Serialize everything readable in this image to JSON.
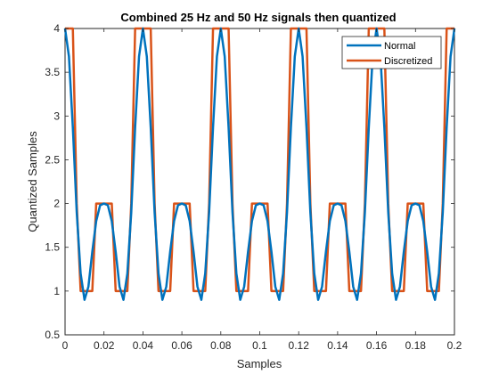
{
  "chart_data": {
    "type": "line",
    "title": "Combined 25 Hz and 50 Hz signals then quantized",
    "xlabel": "Samples",
    "ylabel": "Quantized Samples",
    "xlim": [
      0,
      0.2
    ],
    "ylim": [
      0.5,
      4
    ],
    "xticks": [
      "0",
      "0.02",
      "0.04",
      "0.06",
      "0.08",
      "0.1",
      "0.12",
      "0.14",
      "0.16",
      "0.18",
      "0.2"
    ],
    "yticks": [
      "0.5",
      "1",
      "1.5",
      "2",
      "2.5",
      "3",
      "3.5",
      "4"
    ],
    "legend": {
      "placement": "top-right"
    },
    "grid": false,
    "series": [
      {
        "name": "Normal",
        "color": "#0072BD",
        "x": [
          0,
          0.002,
          0.004,
          0.006,
          0.008,
          0.01,
          0.012,
          0.014,
          0.016,
          0.018,
          0.02,
          0.022,
          0.024,
          0.026,
          0.028,
          0.03,
          0.032,
          0.034,
          0.036,
          0.038,
          0.04,
          0.042,
          0.044,
          0.046,
          0.048,
          0.05,
          0.052,
          0.054,
          0.056,
          0.058,
          0.06,
          0.062,
          0.064,
          0.066,
          0.068,
          0.07,
          0.072,
          0.074,
          0.076,
          0.078,
          0.08,
          0.082,
          0.084,
          0.086,
          0.088,
          0.09,
          0.092,
          0.094,
          0.096,
          0.098,
          0.1,
          0.102,
          0.104,
          0.106,
          0.108,
          0.11,
          0.112,
          0.114,
          0.116,
          0.118,
          0.12,
          0.122,
          0.124,
          0.126,
          0.128,
          0.13,
          0.132,
          0.134,
          0.136,
          0.138,
          0.14,
          0.142,
          0.144,
          0.146,
          0.148,
          0.15,
          0.152,
          0.154,
          0.156,
          0.158,
          0.16,
          0.162,
          0.164,
          0.166,
          0.168,
          0.17,
          0.172,
          0.174,
          0.176,
          0.178,
          0.18,
          0.182,
          0.184,
          0.186,
          0.188,
          0.19,
          0.192,
          0.194,
          0.196,
          0.198,
          0.2
        ],
        "y": [
          4.0,
          3.68,
          2.87,
          1.9,
          1.2,
          0.9,
          1.05,
          1.45,
          1.8,
          1.98,
          2.0,
          1.98,
          1.8,
          1.45,
          1.05,
          0.9,
          1.2,
          1.9,
          2.87,
          3.68,
          4.0,
          3.68,
          2.87,
          1.9,
          1.2,
          0.9,
          1.05,
          1.45,
          1.8,
          1.98,
          2.0,
          1.98,
          1.8,
          1.45,
          1.05,
          0.9,
          1.2,
          1.9,
          2.87,
          3.68,
          4.0,
          3.68,
          2.87,
          1.9,
          1.2,
          0.9,
          1.05,
          1.45,
          1.8,
          1.98,
          2.0,
          1.98,
          1.8,
          1.45,
          1.05,
          0.9,
          1.2,
          1.9,
          2.87,
          3.68,
          4.0,
          3.68,
          2.87,
          1.9,
          1.2,
          0.9,
          1.05,
          1.45,
          1.8,
          1.98,
          2.0,
          1.98,
          1.8,
          1.45,
          1.05,
          0.9,
          1.2,
          1.9,
          2.87,
          3.68,
          4.0,
          3.68,
          2.87,
          1.9,
          1.2,
          0.9,
          1.05,
          1.45,
          1.8,
          1.98,
          2.0,
          1.98,
          1.8,
          1.45,
          1.05,
          0.9,
          1.2,
          1.9,
          2.87,
          3.68,
          4.0
        ]
      },
      {
        "name": "Discretized",
        "color": "#D95319",
        "x": [
          0,
          0.002,
          0.004,
          0.006,
          0.008,
          0.01,
          0.012,
          0.014,
          0.016,
          0.018,
          0.02,
          0.022,
          0.024,
          0.026,
          0.028,
          0.03,
          0.032,
          0.034,
          0.036,
          0.038,
          0.04,
          0.042,
          0.044,
          0.046,
          0.048,
          0.05,
          0.052,
          0.054,
          0.056,
          0.058,
          0.06,
          0.062,
          0.064,
          0.066,
          0.068,
          0.07,
          0.072,
          0.074,
          0.076,
          0.078,
          0.08,
          0.082,
          0.084,
          0.086,
          0.088,
          0.09,
          0.092,
          0.094,
          0.096,
          0.098,
          0.1,
          0.102,
          0.104,
          0.106,
          0.108,
          0.11,
          0.112,
          0.114,
          0.116,
          0.118,
          0.12,
          0.122,
          0.124,
          0.126,
          0.128,
          0.13,
          0.132,
          0.134,
          0.136,
          0.138,
          0.14,
          0.142,
          0.144,
          0.146,
          0.148,
          0.15,
          0.152,
          0.154,
          0.156,
          0.158,
          0.16,
          0.162,
          0.164,
          0.166,
          0.168,
          0.17,
          0.172,
          0.174,
          0.176,
          0.178,
          0.18,
          0.182,
          0.184,
          0.186,
          0.188,
          0.19,
          0.192,
          0.194,
          0.196,
          0.198,
          0.2
        ],
        "y": [
          4,
          4,
          4,
          2,
          1,
          1,
          1,
          1,
          2,
          2,
          2,
          2,
          2,
          1,
          1,
          1,
          1,
          2,
          4,
          4,
          4,
          4,
          4,
          2,
          1,
          1,
          1,
          1,
          2,
          2,
          2,
          2,
          2,
          1,
          1,
          1,
          1,
          2,
          4,
          4,
          4,
          4,
          4,
          2,
          1,
          1,
          1,
          1,
          2,
          2,
          2,
          2,
          2,
          1,
          1,
          1,
          1,
          2,
          4,
          4,
          4,
          4,
          4,
          2,
          1,
          1,
          1,
          1,
          2,
          2,
          2,
          2,
          2,
          1,
          1,
          1,
          1,
          2,
          4,
          4,
          4,
          4,
          4,
          2,
          1,
          1,
          1,
          1,
          2,
          2,
          2,
          2,
          2,
          1,
          1,
          1,
          1,
          2,
          4,
          4,
          4
        ]
      }
    ]
  }
}
